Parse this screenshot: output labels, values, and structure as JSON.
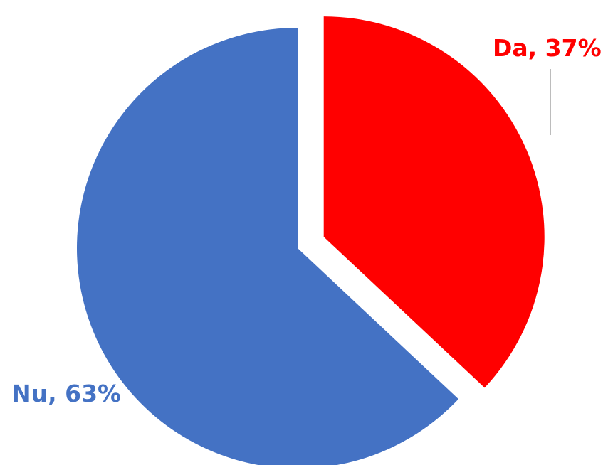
{
  "chart_data": {
    "type": "pie",
    "categories": [
      "Da",
      "Nu"
    ],
    "values": [
      37,
      63
    ],
    "unit": "%",
    "colors": [
      "#ff0000",
      "#4472c4"
    ],
    "data_labels": [
      "Da, 37%",
      "Nu, 63%"
    ],
    "exploded": [
      "Da"
    ],
    "legend": "none"
  }
}
